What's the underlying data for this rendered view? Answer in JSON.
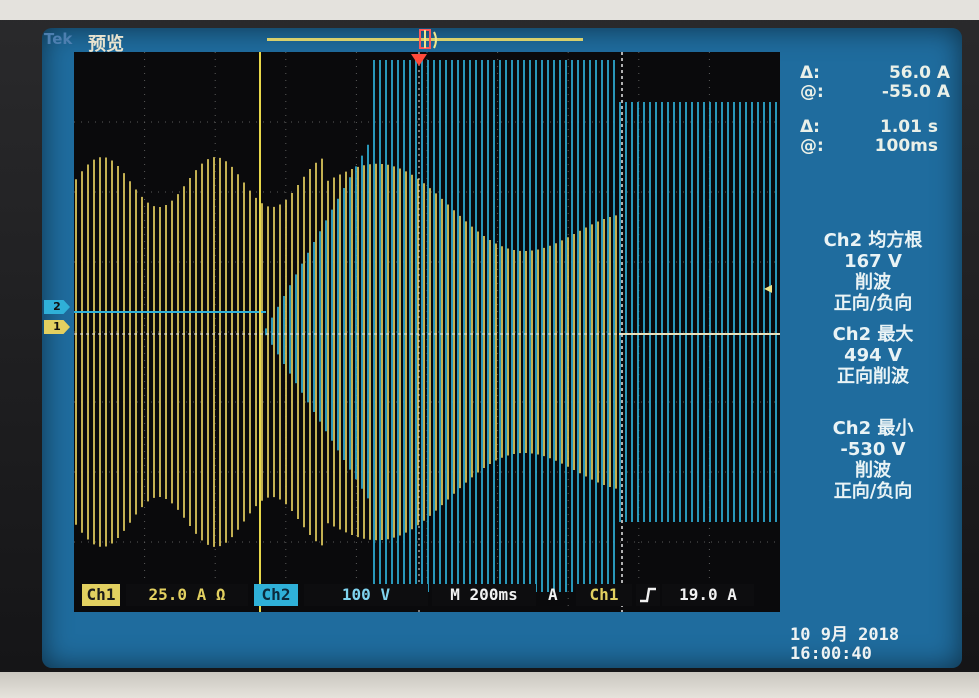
{
  "header": {
    "brand": "Tek",
    "mode": "预览"
  },
  "cursor_readout": {
    "delta_amplitude": "56.0 A",
    "at_amplitude": "-55.0 A",
    "delta_time": "1.01 s",
    "at_time": "100ms",
    "delta_symbol": "Δ:",
    "at_symbol": "@:"
  },
  "measurements": [
    {
      "line1": "Ch2 均方根",
      "line2": "167 V",
      "line3": "削波",
      "line4": "正向/负向"
    },
    {
      "line1": "Ch2 最大",
      "line2": "494 V",
      "line3": "正向削波",
      "line4": ""
    },
    {
      "line1": "Ch2 最小",
      "line2": "-530 V",
      "line3": "削波",
      "line4": "正向/负向"
    }
  ],
  "status_bar": {
    "ch1_label": "Ch1",
    "ch1_scale": "25.0 A Ω",
    "ch2_label": "Ch2",
    "ch2_scale": "100 V",
    "timebase": "M 200ms",
    "trigger_label": "A",
    "trigger_source": "Ch1",
    "trigger_slope_icon": "rising-edge-icon",
    "trigger_level": "19.0 A"
  },
  "timestamp": {
    "date": "10 9月  2018",
    "time": "16:00:40"
  },
  "channel_markers": {
    "ch1": "1",
    "ch2": "2"
  },
  "colors": {
    "ch1": "#d8c25a",
    "ch2": "#2fb0d8",
    "screen": "#1f6c9e",
    "graticule_bg": "#0a0a0c"
  }
}
